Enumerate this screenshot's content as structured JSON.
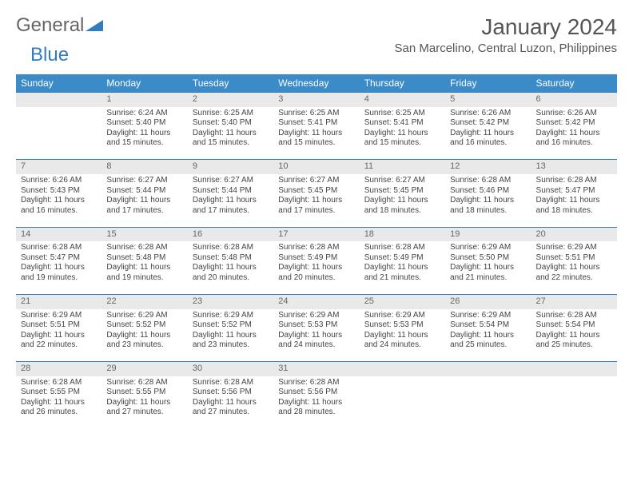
{
  "logo": {
    "general": "General",
    "blue": "Blue"
  },
  "title": "January 2024",
  "location": "San Marcelino, Central Luzon, Philippines",
  "colors": {
    "header_bg": "#3b8bc8",
    "header_text": "#ffffff",
    "daynum_bg": "#e9e9e9",
    "row_divider": "#2f7dc0",
    "logo_blue": "#2f7dc0",
    "text": "#444444"
  },
  "weekdays": [
    "Sunday",
    "Monday",
    "Tuesday",
    "Wednesday",
    "Thursday",
    "Friday",
    "Saturday"
  ],
  "weeks": [
    [
      null,
      {
        "d": "1",
        "sr": "Sunrise: 6:24 AM",
        "ss": "Sunset: 5:40 PM",
        "dl1": "Daylight: 11 hours",
        "dl2": "and 15 minutes."
      },
      {
        "d": "2",
        "sr": "Sunrise: 6:25 AM",
        "ss": "Sunset: 5:40 PM",
        "dl1": "Daylight: 11 hours",
        "dl2": "and 15 minutes."
      },
      {
        "d": "3",
        "sr": "Sunrise: 6:25 AM",
        "ss": "Sunset: 5:41 PM",
        "dl1": "Daylight: 11 hours",
        "dl2": "and 15 minutes."
      },
      {
        "d": "4",
        "sr": "Sunrise: 6:25 AM",
        "ss": "Sunset: 5:41 PM",
        "dl1": "Daylight: 11 hours",
        "dl2": "and 15 minutes."
      },
      {
        "d": "5",
        "sr": "Sunrise: 6:26 AM",
        "ss": "Sunset: 5:42 PM",
        "dl1": "Daylight: 11 hours",
        "dl2": "and 16 minutes."
      },
      {
        "d": "6",
        "sr": "Sunrise: 6:26 AM",
        "ss": "Sunset: 5:42 PM",
        "dl1": "Daylight: 11 hours",
        "dl2": "and 16 minutes."
      }
    ],
    [
      {
        "d": "7",
        "sr": "Sunrise: 6:26 AM",
        "ss": "Sunset: 5:43 PM",
        "dl1": "Daylight: 11 hours",
        "dl2": "and 16 minutes."
      },
      {
        "d": "8",
        "sr": "Sunrise: 6:27 AM",
        "ss": "Sunset: 5:44 PM",
        "dl1": "Daylight: 11 hours",
        "dl2": "and 17 minutes."
      },
      {
        "d": "9",
        "sr": "Sunrise: 6:27 AM",
        "ss": "Sunset: 5:44 PM",
        "dl1": "Daylight: 11 hours",
        "dl2": "and 17 minutes."
      },
      {
        "d": "10",
        "sr": "Sunrise: 6:27 AM",
        "ss": "Sunset: 5:45 PM",
        "dl1": "Daylight: 11 hours",
        "dl2": "and 17 minutes."
      },
      {
        "d": "11",
        "sr": "Sunrise: 6:27 AM",
        "ss": "Sunset: 5:45 PM",
        "dl1": "Daylight: 11 hours",
        "dl2": "and 18 minutes."
      },
      {
        "d": "12",
        "sr": "Sunrise: 6:28 AM",
        "ss": "Sunset: 5:46 PM",
        "dl1": "Daylight: 11 hours",
        "dl2": "and 18 minutes."
      },
      {
        "d": "13",
        "sr": "Sunrise: 6:28 AM",
        "ss": "Sunset: 5:47 PM",
        "dl1": "Daylight: 11 hours",
        "dl2": "and 18 minutes."
      }
    ],
    [
      {
        "d": "14",
        "sr": "Sunrise: 6:28 AM",
        "ss": "Sunset: 5:47 PM",
        "dl1": "Daylight: 11 hours",
        "dl2": "and 19 minutes."
      },
      {
        "d": "15",
        "sr": "Sunrise: 6:28 AM",
        "ss": "Sunset: 5:48 PM",
        "dl1": "Daylight: 11 hours",
        "dl2": "and 19 minutes."
      },
      {
        "d": "16",
        "sr": "Sunrise: 6:28 AM",
        "ss": "Sunset: 5:48 PM",
        "dl1": "Daylight: 11 hours",
        "dl2": "and 20 minutes."
      },
      {
        "d": "17",
        "sr": "Sunrise: 6:28 AM",
        "ss": "Sunset: 5:49 PM",
        "dl1": "Daylight: 11 hours",
        "dl2": "and 20 minutes."
      },
      {
        "d": "18",
        "sr": "Sunrise: 6:28 AM",
        "ss": "Sunset: 5:49 PM",
        "dl1": "Daylight: 11 hours",
        "dl2": "and 21 minutes."
      },
      {
        "d": "19",
        "sr": "Sunrise: 6:29 AM",
        "ss": "Sunset: 5:50 PM",
        "dl1": "Daylight: 11 hours",
        "dl2": "and 21 minutes."
      },
      {
        "d": "20",
        "sr": "Sunrise: 6:29 AM",
        "ss": "Sunset: 5:51 PM",
        "dl1": "Daylight: 11 hours",
        "dl2": "and 22 minutes."
      }
    ],
    [
      {
        "d": "21",
        "sr": "Sunrise: 6:29 AM",
        "ss": "Sunset: 5:51 PM",
        "dl1": "Daylight: 11 hours",
        "dl2": "and 22 minutes."
      },
      {
        "d": "22",
        "sr": "Sunrise: 6:29 AM",
        "ss": "Sunset: 5:52 PM",
        "dl1": "Daylight: 11 hours",
        "dl2": "and 23 minutes."
      },
      {
        "d": "23",
        "sr": "Sunrise: 6:29 AM",
        "ss": "Sunset: 5:52 PM",
        "dl1": "Daylight: 11 hours",
        "dl2": "and 23 minutes."
      },
      {
        "d": "24",
        "sr": "Sunrise: 6:29 AM",
        "ss": "Sunset: 5:53 PM",
        "dl1": "Daylight: 11 hours",
        "dl2": "and 24 minutes."
      },
      {
        "d": "25",
        "sr": "Sunrise: 6:29 AM",
        "ss": "Sunset: 5:53 PM",
        "dl1": "Daylight: 11 hours",
        "dl2": "and 24 minutes."
      },
      {
        "d": "26",
        "sr": "Sunrise: 6:29 AM",
        "ss": "Sunset: 5:54 PM",
        "dl1": "Daylight: 11 hours",
        "dl2": "and 25 minutes."
      },
      {
        "d": "27",
        "sr": "Sunrise: 6:28 AM",
        "ss": "Sunset: 5:54 PM",
        "dl1": "Daylight: 11 hours",
        "dl2": "and 25 minutes."
      }
    ],
    [
      {
        "d": "28",
        "sr": "Sunrise: 6:28 AM",
        "ss": "Sunset: 5:55 PM",
        "dl1": "Daylight: 11 hours",
        "dl2": "and 26 minutes."
      },
      {
        "d": "29",
        "sr": "Sunrise: 6:28 AM",
        "ss": "Sunset: 5:55 PM",
        "dl1": "Daylight: 11 hours",
        "dl2": "and 27 minutes."
      },
      {
        "d": "30",
        "sr": "Sunrise: 6:28 AM",
        "ss": "Sunset: 5:56 PM",
        "dl1": "Daylight: 11 hours",
        "dl2": "and 27 minutes."
      },
      {
        "d": "31",
        "sr": "Sunrise: 6:28 AM",
        "ss": "Sunset: 5:56 PM",
        "dl1": "Daylight: 11 hours",
        "dl2": "and 28 minutes."
      },
      null,
      null,
      null
    ]
  ]
}
